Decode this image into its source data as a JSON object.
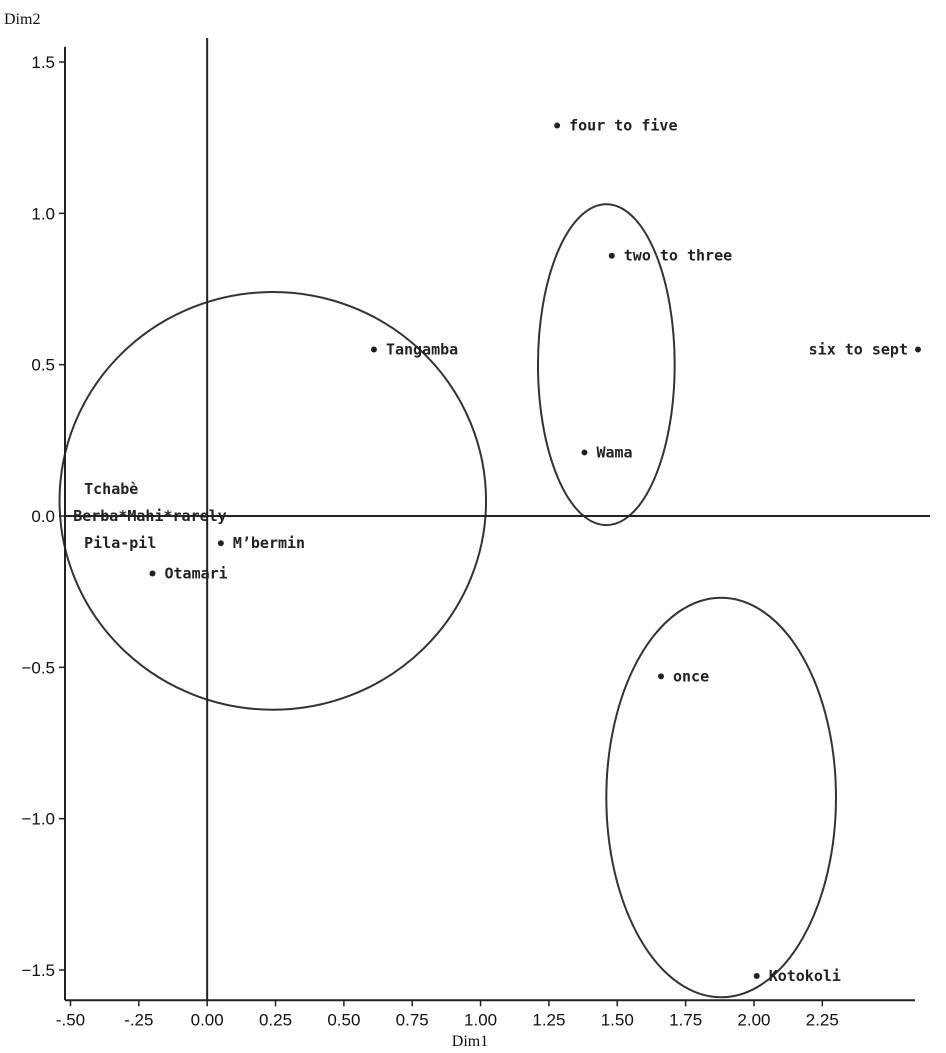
{
  "chart_data": {
    "type": "scatter",
    "title": "",
    "xlabel": "Dim1",
    "ylabel": "Dim2",
    "xlim": [
      -0.52,
      2.6
    ],
    "ylim": [
      -1.6,
      1.55
    ],
    "x_ticks": [
      -0.5,
      -0.25,
      0.0,
      0.25,
      0.5,
      0.75,
      1.0,
      1.25,
      1.5,
      1.75,
      2.0,
      2.25
    ],
    "x_tick_labels": [
      "-.50",
      "-.25",
      "0.00",
      "0.25",
      "0.50",
      "0.75",
      "1.00",
      "1.25",
      "1.50",
      "1.75",
      "2.00",
      "2.25"
    ],
    "y_ticks": [
      1.5,
      1.0,
      0.5,
      0.0,
      -0.5,
      -1.0,
      -1.5
    ],
    "y_tick_labels": [
      "1.5",
      "1.0",
      "0.5",
      "0.0",
      "−0.5",
      "−1.0",
      "−1.5"
    ],
    "points": [
      {
        "label": "four to five",
        "x": 1.28,
        "y": 1.29,
        "marker": true
      },
      {
        "label": "two to three",
        "x": 1.48,
        "y": 0.86,
        "marker": true
      },
      {
        "label": "Tangamba",
        "x": 0.61,
        "y": 0.55,
        "marker": true
      },
      {
        "label": "six to sept",
        "x": 2.6,
        "y": 0.55,
        "marker": true
      },
      {
        "label": "Wama",
        "x": 1.38,
        "y": 0.21,
        "marker": true
      },
      {
        "label": "Tchabè",
        "x": -0.45,
        "y": 0.09,
        "marker": false
      },
      {
        "label": "Berba*Mahi*rarely",
        "x": -0.49,
        "y": 0.0,
        "marker": false
      },
      {
        "label": "Pila-pil",
        "x": -0.45,
        "y": -0.09,
        "marker": false
      },
      {
        "label": "M’bermin",
        "x": 0.05,
        "y": -0.09,
        "marker": true
      },
      {
        "label": "Otamari",
        "x": -0.2,
        "y": -0.19,
        "marker": true
      },
      {
        "label": "once",
        "x": 1.66,
        "y": -0.53,
        "marker": true
      },
      {
        "label": "Kotokoli",
        "x": 2.01,
        "y": -1.52,
        "marker": true
      }
    ],
    "groups": [
      {
        "cx": 0.24,
        "cy": 0.05,
        "rx": 0.78,
        "ry": 0.69
      },
      {
        "cx": 1.46,
        "cy": 0.5,
        "rx": 0.25,
        "ry": 0.53
      },
      {
        "cx": 1.88,
        "cy": -0.93,
        "rx": 0.42,
        "ry": 0.66
      }
    ],
    "grid": false,
    "legend": "none"
  }
}
